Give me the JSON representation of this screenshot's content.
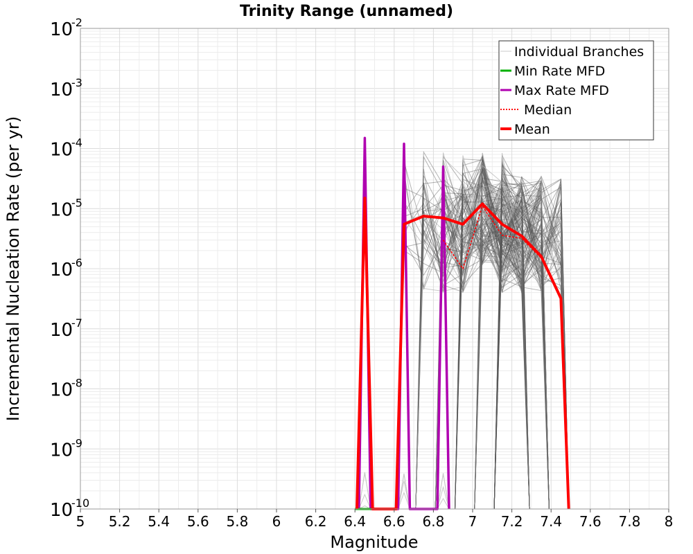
{
  "chart_data": {
    "type": "line",
    "title": "Trinity Range (unnamed)",
    "xlabel": "Magnitude",
    "ylabel": "Incremental Nucleation Rate (per yr)",
    "xlim": [
      5,
      8
    ],
    "ylim": [
      1e-10,
      0.01
    ],
    "yscale": "log",
    "grid": true,
    "legend_position": "top-right",
    "x_ticks": [
      "5",
      "5.2",
      "5.4",
      "5.6",
      "5.8",
      "6",
      "6.2",
      "6.4",
      "6.6",
      "6.8",
      "7",
      "7.2",
      "7.4",
      "7.6",
      "7.8",
      "8"
    ],
    "y_ticks": [
      {
        "base": "10",
        "exp": "-2",
        "value": 0.01
      },
      {
        "base": "10",
        "exp": "-3",
        "value": 0.001
      },
      {
        "base": "10",
        "exp": "-4",
        "value": 0.0001
      },
      {
        "base": "10",
        "exp": "-5",
        "value": 1e-05
      },
      {
        "base": "10",
        "exp": "-6",
        "value": 1e-06
      },
      {
        "base": "10",
        "exp": "-7",
        "value": 1e-07
      },
      {
        "base": "10",
        "exp": "-8",
        "value": 1e-08
      },
      {
        "base": "10",
        "exp": "-9",
        "value": 1e-09
      },
      {
        "base": "10",
        "exp": "-10",
        "value": 1e-10
      }
    ],
    "legend": [
      {
        "label": "Individual Branches",
        "color": "#c8c8c8",
        "style": "thin"
      },
      {
        "label": "Min Rate MFD",
        "color": "#00b000",
        "style": "solid"
      },
      {
        "label": "Max Rate MFD",
        "color": "#b000b0",
        "style": "solid"
      },
      {
        "label": "Median",
        "color": "#ff0000",
        "style": "dotted"
      },
      {
        "label": "Mean",
        "color": "#ff0000",
        "style": "thick"
      }
    ],
    "series": [
      {
        "name": "Max Rate MFD",
        "color": "#b000b0",
        "x": [
          6.42,
          6.45,
          6.48,
          6.62,
          6.65,
          6.68,
          6.82,
          6.85,
          6.88
        ],
        "y": [
          1e-10,
          0.00015,
          1e-10,
          1e-10,
          0.00012,
          1e-10,
          1e-10,
          5e-05,
          1e-10
        ]
      },
      {
        "name": "Min Rate MFD",
        "color": "#00b000",
        "x": [
          6.4,
          6.45,
          6.5
        ],
        "y": [
          1e-10,
          1e-10,
          1e-10
        ]
      },
      {
        "name": "Median",
        "color": "#ff0000",
        "x": [
          6.85,
          6.95,
          7.05,
          7.15,
          7.25,
          7.35
        ],
        "y": [
          3e-06,
          1e-06,
          1.1e-05,
          3.6e-06,
          3.2e-06,
          1.5e-06
        ]
      },
      {
        "name": "Mean",
        "color": "#ff0000",
        "x": [
          6.41,
          6.45,
          6.49,
          6.61,
          6.65,
          6.75,
          6.85,
          6.95,
          7.05,
          7.15,
          7.25,
          7.35,
          7.45,
          7.49
        ],
        "y": [
          1e-10,
          1.5e-05,
          1e-10,
          1e-10,
          5.5e-06,
          7.5e-06,
          7e-06,
          5.5e-06,
          1.2e-05,
          5.5e-06,
          3.5e-06,
          1.6e-06,
          3.2e-07,
          1e-10
        ]
      }
    ]
  }
}
